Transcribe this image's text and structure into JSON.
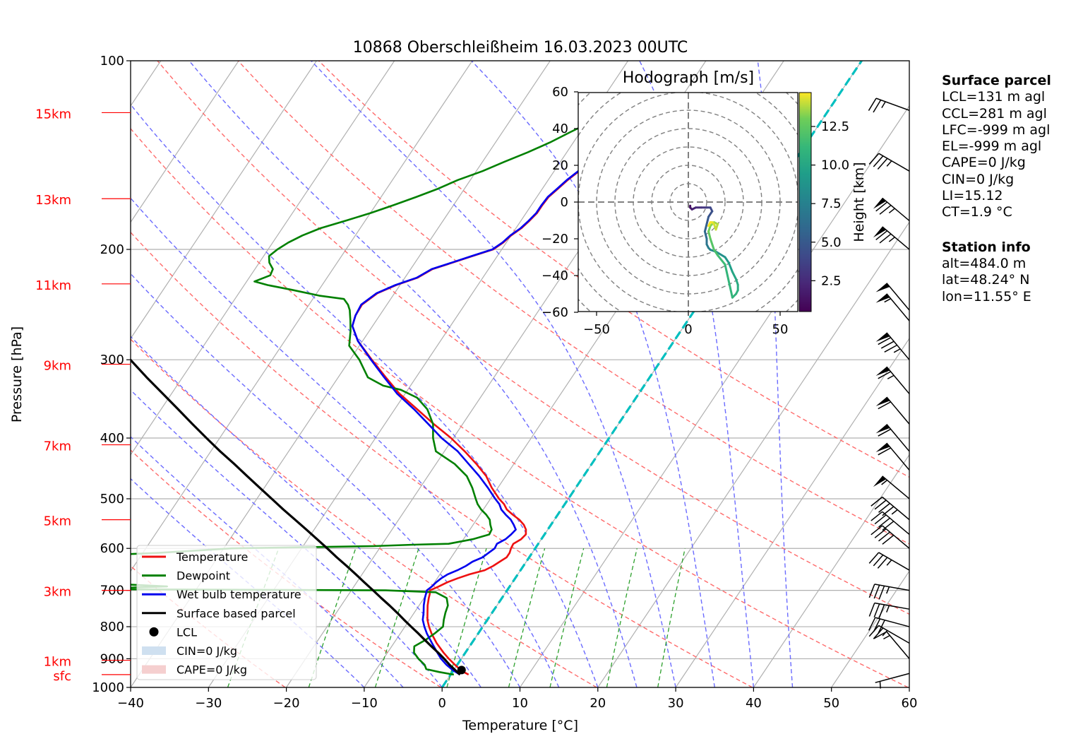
{
  "title": "10868 Oberschleißheim 16.03.2023 00UTC",
  "colors": {
    "temperature": "#ee1111",
    "dewpoint": "#008000",
    "wetbulb": "#0000ee",
    "parcel": "#000000",
    "dry_adiabat": "#ff6b6b",
    "moist_adiabat": "#6b6bff",
    "mixing_ratio": "#2ca02c",
    "isotherm_zero": "#00bfbf",
    "height_label": "#ff0000",
    "grid": "#b0b0b0",
    "cin_fill": "#cfe0f0",
    "cape_fill": "#f5cfcf"
  },
  "chart_data": [
    {
      "type": "line",
      "subtype": "skew-T log-p diagram",
      "title": "10868 Oberschleißheim 16.03.2023 00UTC",
      "xlabel": "Temperature [°C]",
      "ylabel": "Pressure [hPa]",
      "xlim": [
        -40,
        60
      ],
      "ylim": [
        1000,
        100
      ],
      "y_scale": "log",
      "x_ticks": [
        "−40",
        "−30",
        "−20",
        "−10",
        "0",
        "10",
        "20",
        "30",
        "40",
        "50",
        "60"
      ],
      "x_tick_values": [
        -40,
        -30,
        -20,
        -10,
        0,
        10,
        20,
        30,
        40,
        50,
        60
      ],
      "y_ticks": [
        "100",
        "200",
        "300",
        "400",
        "500",
        "600",
        "700",
        "800",
        "900",
        "1000"
      ],
      "y_tick_values": [
        100,
        200,
        300,
        400,
        500,
        600,
        700,
        800,
        900,
        1000
      ],
      "grid": true,
      "height_labels": [
        {
          "label": "sfc",
          "p": 954
        },
        {
          "label": "1km",
          "p": 905
        },
        {
          "label": "3km",
          "p": 700
        },
        {
          "label": "5km",
          "p": 540
        },
        {
          "label": "7km",
          "p": 410
        },
        {
          "label": "9km",
          "p": 305
        },
        {
          "label": "11km",
          "p": 227
        },
        {
          "label": "13km",
          "p": 166
        },
        {
          "label": "15km",
          "p": 121
        }
      ],
      "dry_adiabats_theta_K": [
        193,
        213,
        233,
        253,
        273,
        293,
        313,
        333,
        353,
        373,
        393
      ],
      "moist_adiabats_start_C": [
        -10,
        -5,
        0,
        5,
        10,
        15,
        20,
        25,
        30,
        35,
        40,
        45
      ],
      "mixing_ratio_lines_gkg": [
        0.4,
        1,
        2,
        4,
        7,
        10,
        16,
        24
      ],
      "zero_isotherm": true,
      "legend": {
        "position": "lower-left",
        "entries": [
          {
            "label": "Temperature",
            "kind": "line",
            "color_key": "temperature"
          },
          {
            "label": "Dewpoint",
            "kind": "line",
            "color_key": "dewpoint"
          },
          {
            "label": "Wet bulb temperature",
            "kind": "line",
            "color_key": "wetbulb"
          },
          {
            "label": "Surface based parcel",
            "kind": "line",
            "color_key": "parcel"
          },
          {
            "label": "LCL",
            "kind": "marker",
            "color_key": "parcel"
          },
          {
            "label": "CIN=0 J/kg",
            "kind": "patch",
            "color_key": "cin_fill"
          },
          {
            "label": "CAPE=0 J/kg",
            "kind": "patch",
            "color_key": "cape_fill"
          }
        ]
      },
      "series": [
        {
          "name": "Temperature",
          "color_key": "temperature",
          "p": [
            954,
            940,
            920,
            900,
            880,
            850,
            820,
            800,
            780,
            760,
            740,
            720,
            710,
            700,
            690,
            680,
            670,
            660,
            650,
            640,
            630,
            620,
            610,
            600,
            590,
            580,
            570,
            560,
            550,
            540,
            530,
            520,
            510,
            500,
            480,
            460,
            440,
            420,
            400,
            380,
            360,
            340,
            320,
            300,
            280,
            265,
            255,
            245,
            235,
            228,
            222,
            215,
            210,
            205,
            200,
            195,
            190,
            185,
            180,
            175,
            170,
            165,
            160,
            155,
            150,
            145,
            140,
            135,
            130,
            125,
            120
          ],
          "t": [
            2.3,
            1.0,
            -0.3,
            -1.6,
            -2.8,
            -4.5,
            -6.0,
            -6.9,
            -7.7,
            -8.3,
            -8.9,
            -9.4,
            -9.6,
            -9.9,
            -9.1,
            -8.4,
            -7.4,
            -6.2,
            -4.6,
            -3.9,
            -3.4,
            -2.9,
            -2.9,
            -3.1,
            -3.2,
            -2.6,
            -2.4,
            -2.8,
            -3.5,
            -4.5,
            -5.8,
            -7.0,
            -7.8,
            -8.9,
            -10.8,
            -12.5,
            -14.8,
            -17.4,
            -20.3,
            -23.7,
            -27.1,
            -30.7,
            -33.9,
            -37.2,
            -40.6,
            -42.6,
            -43.1,
            -43.2,
            -42.2,
            -40.5,
            -38.4,
            -37.2,
            -35.2,
            -33.2,
            -31.1,
            -30.4,
            -30.0,
            -29.3,
            -28.9,
            -28.6,
            -28.6,
            -28.5,
            -28.0,
            -27.5,
            -26.8,
            -26.1,
            -25.2,
            -24.4,
            -23.6,
            -22.5,
            -21.2
          ]
        },
        {
          "name": "Dewpoint",
          "color_key": "dewpoint",
          "p": [
            954,
            945,
            935,
            920,
            900,
            880,
            860,
            840,
            820,
            800,
            780,
            760,
            740,
            720,
            705,
            700,
            697,
            690,
            680,
            670,
            660,
            650,
            640,
            630,
            620,
            610,
            600,
            595,
            592,
            590,
            580,
            570,
            560,
            550,
            540,
            530,
            520,
            510,
            500,
            480,
            460,
            440,
            420,
            400,
            380,
            360,
            345,
            335,
            330,
            320,
            300,
            285,
            270,
            260,
            250,
            245,
            240,
            237,
            232,
            228,
            225,
            220,
            215,
            210,
            205,
            200,
            195,
            190,
            185,
            180,
            175,
            170,
            165,
            160,
            155,
            150,
            145,
            140,
            135,
            130,
            125,
            120
          ],
          "t": [
            0.4,
            -1.7,
            -3.6,
            -4.2,
            -5.5,
            -6.6,
            -7.1,
            -6.2,
            -5.6,
            -5.1,
            -5.6,
            -6.0,
            -6.3,
            -7.1,
            -9.0,
            -15.6,
            -55.0,
            -44.0,
            -55.0,
            -52.0,
            -61.0,
            -57.0,
            -55.0,
            -59.0,
            -62.0,
            -48.0,
            -39.0,
            -21.0,
            -16.0,
            -11.5,
            -8.8,
            -7.1,
            -7.2,
            -7.8,
            -8.3,
            -9.2,
            -10.3,
            -11.2,
            -11.9,
            -13.3,
            -15.0,
            -17.6,
            -21.1,
            -22.6,
            -23.8,
            -25.8,
            -28.1,
            -30.9,
            -33.5,
            -36.2,
            -38.8,
            -41.3,
            -42.4,
            -43.3,
            -44.3,
            -45.0,
            -46.0,
            -49.5,
            -53.5,
            -57.0,
            -59.0,
            -57.5,
            -57.7,
            -58.7,
            -59.3,
            -58.8,
            -58.0,
            -56.8,
            -55.1,
            -52.5,
            -50.0,
            -47.7,
            -45.5,
            -43.4,
            -41.6,
            -39.2,
            -37.2,
            -35.0,
            -33.0,
            -31.3,
            -29.4,
            -27.3
          ]
        },
        {
          "name": "Wet bulb temperature",
          "color_key": "wetbulb",
          "p": [
            954,
            940,
            920,
            900,
            880,
            850,
            820,
            800,
            780,
            760,
            740,
            720,
            710,
            700,
            690,
            680,
            670,
            660,
            650,
            640,
            630,
            620,
            610,
            600,
            590,
            580,
            570,
            560,
            550,
            540,
            530,
            520,
            510,
            500,
            480,
            460,
            440,
            420,
            400,
            380,
            360,
            340,
            320,
            300,
            280,
            265,
            255,
            245,
            235,
            228,
            222,
            215,
            210,
            205,
            200,
            195,
            190,
            185,
            180,
            175,
            170,
            165,
            160,
            155,
            150,
            145,
            140,
            135,
            130,
            125,
            120
          ],
          "t": [
            1.2,
            0.0,
            -1.4,
            -2.6,
            -3.6,
            -5.1,
            -6.6,
            -7.5,
            -8.3,
            -8.8,
            -9.4,
            -9.9,
            -10.1,
            -10.3,
            -10.0,
            -9.8,
            -9.5,
            -9.0,
            -8.1,
            -7.4,
            -6.9,
            -6.0,
            -5.6,
            -5.2,
            -5.3,
            -4.6,
            -4.3,
            -4.1,
            -4.8,
            -5.6,
            -6.7,
            -7.7,
            -8.4,
            -9.4,
            -11.3,
            -13.4,
            -15.8,
            -18.3,
            -21.5,
            -24.4,
            -27.5,
            -31.0,
            -34.1,
            -37.3,
            -40.6,
            -42.6,
            -43.1,
            -43.3,
            -42.3,
            -40.6,
            -38.5,
            -37.3,
            -35.3,
            -33.3,
            -31.2,
            -30.5,
            -30.1,
            -29.4,
            -29.0,
            -28.7,
            -28.7,
            -28.6,
            -28.1,
            -27.6,
            -26.9,
            -26.2,
            -25.3,
            -24.5,
            -23.7,
            -22.6,
            -21.4
          ]
        },
        {
          "name": "Surface based parcel",
          "color_key": "parcel",
          "p": [
            954,
            940,
            920,
            900,
            880,
            860,
            840,
            820,
            800,
            780,
            760,
            740,
            720,
            700,
            680,
            660,
            640,
            620,
            600,
            580,
            560,
            540,
            520,
            500,
            480,
            460,
            440,
            420,
            400,
            380,
            360,
            340,
            320,
            300,
            280,
            260,
            240,
            230,
            220
          ],
          "t": [
            1.2,
            0.3,
            -1.0,
            -2.2,
            -3.5,
            -4.9,
            -6.3,
            -7.7,
            -9.2,
            -10.7,
            -12.2,
            -13.8,
            -15.5,
            -17.2,
            -19.0,
            -20.8,
            -22.7,
            -24.7,
            -26.7,
            -28.8,
            -31.0,
            -33.3,
            -35.7,
            -38.1,
            -40.6,
            -43.2,
            -45.9,
            -48.8,
            -51.7,
            -54.7,
            -57.8,
            -61.1,
            -64.6,
            -68.2,
            -72.0,
            -75.9,
            -80.2,
            -82.3,
            -84.6
          ]
        }
      ],
      "lcl": {
        "p": 938,
        "t": 1.0
      },
      "wind_barbs": [
        {
          "p": 950,
          "dir_deg": 255,
          "speed_kt": 5
        },
        {
          "p": 900,
          "dir_deg": 320,
          "speed_kt": 15
        },
        {
          "p": 850,
          "dir_deg": 300,
          "speed_kt": 25
        },
        {
          "p": 800,
          "dir_deg": 285,
          "speed_kt": 30
        },
        {
          "p": 750,
          "dir_deg": 280,
          "speed_kt": 35
        },
        {
          "p": 700,
          "dir_deg": 280,
          "speed_kt": 35
        },
        {
          "p": 650,
          "dir_deg": 300,
          "speed_kt": 35
        },
        {
          "p": 600,
          "dir_deg": 310,
          "speed_kt": 40
        },
        {
          "p": 570,
          "dir_deg": 310,
          "speed_kt": 40
        },
        {
          "p": 540,
          "dir_deg": 310,
          "speed_kt": 45
        },
        {
          "p": 500,
          "dir_deg": 310,
          "speed_kt": 55
        },
        {
          "p": 450,
          "dir_deg": 320,
          "speed_kt": 60
        },
        {
          "p": 420,
          "dir_deg": 320,
          "speed_kt": 60
        },
        {
          "p": 380,
          "dir_deg": 320,
          "speed_kt": 60
        },
        {
          "p": 340,
          "dir_deg": 320,
          "speed_kt": 65
        },
        {
          "p": 300,
          "dir_deg": 320,
          "speed_kt": 85
        },
        {
          "p": 260,
          "dir_deg": 320,
          "speed_kt": 55
        },
        {
          "p": 250,
          "dir_deg": 320,
          "speed_kt": 50
        },
        {
          "p": 200,
          "dir_deg": 310,
          "speed_kt": 75
        },
        {
          "p": 180,
          "dir_deg": 310,
          "speed_kt": 75
        },
        {
          "p": 150,
          "dir_deg": 300,
          "speed_kt": 35
        },
        {
          "p": 120,
          "dir_deg": 290,
          "speed_kt": 25
        }
      ]
    },
    {
      "type": "line",
      "subtype": "hodograph",
      "title": "Hodograph [m/s]",
      "xlim": [
        -60,
        60
      ],
      "ylim": [
        -60,
        60
      ],
      "x_ticks": [
        "−50",
        "0",
        "50"
      ],
      "x_tick_values": [
        -50,
        0,
        50
      ],
      "y_ticks": [
        "60",
        "40",
        "20",
        "0",
        "−20",
        "−40",
        "−60"
      ],
      "y_tick_values": [
        60,
        40,
        20,
        0,
        -20,
        -40,
        -60
      ],
      "rings_ms": [
        10,
        20,
        30,
        40,
        50,
        60,
        70,
        80
      ],
      "colorbar": {
        "label": "Height [km]",
        "range_km": [
          0.5,
          14.7
        ],
        "ticks": [
          "2.5",
          "5.0",
          "7.5",
          "10.0",
          "12.5"
        ],
        "tick_values": [
          2.5,
          5.0,
          7.5,
          10.0,
          12.5
        ]
      },
      "trace": {
        "u": [
          1,
          1,
          2,
          4,
          7,
          10,
          12,
          13,
          11,
          10,
          9,
          10,
          10,
          11,
          12,
          15,
          20,
          22,
          24,
          26,
          27,
          27,
          26,
          24,
          20,
          16,
          14,
          12,
          11,
          12,
          14,
          16,
          15,
          14,
          13,
          12,
          11
        ],
        "v": [
          -2,
          -3,
          -4,
          -3,
          -3,
          -3,
          -3,
          -5,
          -8,
          -12,
          -16,
          -20,
          -23,
          -25,
          -26,
          -27,
          -30,
          -33,
          -38,
          -42,
          -45,
          -48,
          -50,
          -52,
          -34,
          -29,
          -26,
          -20,
          -16,
          -13,
          -11,
          -12,
          -15,
          -12,
          -11,
          -11,
          -13
        ],
        "height_km": [
          0.5,
          1.0,
          1.5,
          2.0,
          2.5,
          3.0,
          3.5,
          4.0,
          4.5,
          5.0,
          5.5,
          6.0,
          6.5,
          7.0,
          7.5,
          8.0,
          8.5,
          9.0,
          9.5,
          10.0,
          10.2,
          10.4,
          10.6,
          10.8,
          11.0,
          11.4,
          11.8,
          12.2,
          12.6,
          13.0,
          13.3,
          13.6,
          13.9,
          14.1,
          14.3,
          14.5,
          14.7
        ]
      }
    }
  ],
  "info": {
    "surface_header": "Surface parcel",
    "surface_lines": [
      "LCL=131 m agl",
      "CCL=281 m agl",
      "LFC=-999 m agl",
      "EL=-999 m agl",
      "CAPE=0 J/kg",
      "CIN=0 J/kg",
      "LI=15.12",
      "CT=1.9 °C"
    ],
    "station_header": "Station info",
    "station_lines": [
      "alt=484.0 m",
      "lat=48.24° N",
      "lon=11.55° E"
    ]
  }
}
